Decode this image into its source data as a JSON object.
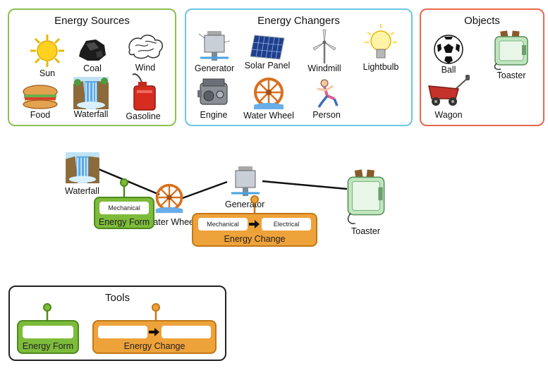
{
  "panels": {
    "sources": {
      "title": "Energy Sources",
      "items": [
        "Sun",
        "Coal",
        "Wind",
        "Food",
        "Waterfall",
        "Gasoline"
      ]
    },
    "changers": {
      "title": "Energy Changers",
      "items": [
        "Generator",
        "Solar Panel",
        "Windmill",
        "Lightbulb",
        "Engine",
        "Water Wheel",
        "Person"
      ]
    },
    "objects": {
      "title": "Objects",
      "items": [
        "Ball",
        "Toaster",
        "Wagon"
      ]
    }
  },
  "canvas": {
    "waterfall_label": "Waterfall",
    "waterwheel_label": "Water Wheel",
    "generator_label": "Generator",
    "toaster_label": "Toaster",
    "energy_form": {
      "label": "Energy Form",
      "value": "Mechanical"
    },
    "energy_change": {
      "label": "Energy Change",
      "from": "Mechanical",
      "to": "Electrical"
    }
  },
  "tools": {
    "title": "Tools",
    "energy_form_label": "Energy Form",
    "energy_change_label": "Energy Change"
  },
  "colors": {
    "sources_border": "#8cc152",
    "changers_border": "#6cc6e6",
    "objects_border": "#e8684a",
    "tools_border": "#222222",
    "form_green": "#7dbb3a",
    "change_orange": "#eea23a"
  }
}
